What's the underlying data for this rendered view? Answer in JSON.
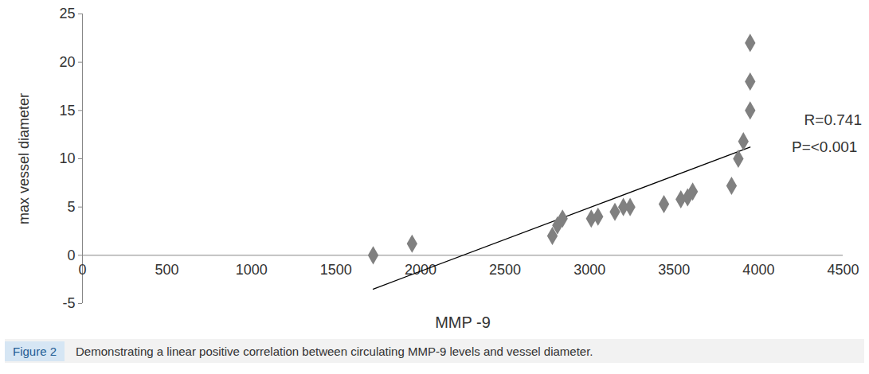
{
  "chart_data": {
    "type": "scatter",
    "x_label": "MMP -9",
    "y_label": "max vessel diameter",
    "x": [
      1720,
      1950,
      2780,
      2810,
      2840,
      3010,
      3050,
      3150,
      3200,
      3240,
      3440,
      3540,
      3580,
      3610,
      3840,
      3880,
      3910,
      3950,
      3950,
      3950
    ],
    "values": [
      0,
      1.2,
      2.0,
      3.1,
      3.8,
      3.8,
      4.0,
      4.5,
      5.0,
      5.0,
      5.3,
      5.8,
      6.0,
      6.6,
      7.2,
      10.0,
      11.8,
      15,
      18,
      22
    ],
    "color": "#808080",
    "marker": "diamond",
    "trendline": {
      "x": [
        1720,
        3950
      ],
      "y": [
        -3.5,
        11.2
      ],
      "color": "#000000"
    },
    "annotations": [
      "R=0.741",
      "P=<0.001"
    ],
    "xlim": [
      0,
      4500
    ],
    "xticks": [
      0,
      500,
      1000,
      1500,
      2000,
      2500,
      3000,
      3500,
      4000,
      4500
    ],
    "ylim": [
      -5,
      25
    ],
    "yticks": [
      -5,
      0,
      5,
      10,
      15,
      20,
      25
    ],
    "grid": false,
    "caption_label": "Figure 2",
    "caption": "Demonstrating a linear positive correlation between circulating MMP-9 levels and vessel diameter."
  }
}
